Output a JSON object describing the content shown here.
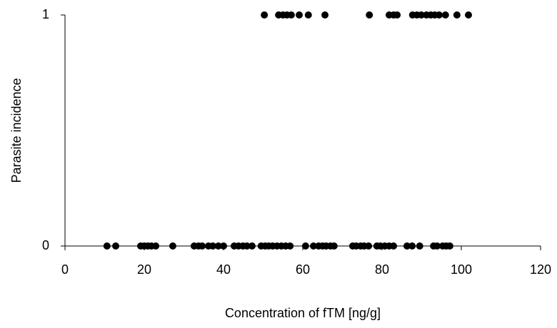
{
  "chart_data": {
    "type": "scatter",
    "x_label": "Concentration of fTM [ng/g]",
    "y_label": "Parasite incidence",
    "color": "#000000",
    "xlim": [
      0,
      120
    ],
    "xticks": [
      0,
      20,
      40,
      60,
      80,
      100,
      120
    ],
    "ylim": [
      0,
      1
    ],
    "yticks": [
      0,
      1
    ],
    "grid": false,
    "x": [
      50.3,
      53.9,
      55.0,
      56.0,
      57.1,
      59.1,
      61.4,
      65.6,
      76.8,
      81.8,
      82.9,
      83.8,
      87.7,
      88.8,
      89.9,
      91.2,
      92.3,
      93.3,
      94.4,
      96.0,
      98.9,
      101.8,
      10.6,
      12.8,
      19.1,
      20.0,
      20.9,
      21.8,
      22.9,
      27.2,
      32.6,
      33.7,
      34.6,
      36.2,
      37.3,
      38.7,
      40.0,
      42.7,
      43.8,
      44.9,
      45.9,
      47.2,
      49.5,
      50.5,
      51.4,
      52.4,
      53.5,
      54.6,
      55.7,
      56.8,
      60.7,
      62.7,
      64.0,
      65.0,
      65.9,
      67.0,
      67.9,
      72.6,
      73.5,
      74.6,
      75.5,
      76.6,
      78.7,
      79.6,
      80.7,
      81.8,
      82.9,
      86.3,
      87.6,
      89.5,
      93.0,
      93.9,
      95.3,
      96.2,
      97.1
    ],
    "y": [
      1,
      1,
      1,
      1,
      1,
      1,
      1,
      1,
      1,
      1,
      1,
      1,
      1,
      1,
      1,
      1,
      1,
      1,
      1,
      1,
      1,
      1,
      0,
      0,
      0,
      0,
      0,
      0,
      0,
      0,
      0,
      0,
      0,
      0,
      0,
      0,
      0,
      0,
      0,
      0,
      0,
      0,
      0,
      0,
      0,
      0,
      0,
      0,
      0,
      0,
      0,
      0,
      0,
      0,
      0,
      0,
      0,
      0,
      0,
      0,
      0,
      0,
      0,
      0,
      0,
      0,
      0,
      0,
      0,
      0,
      0,
      0,
      0,
      0,
      0
    ]
  }
}
